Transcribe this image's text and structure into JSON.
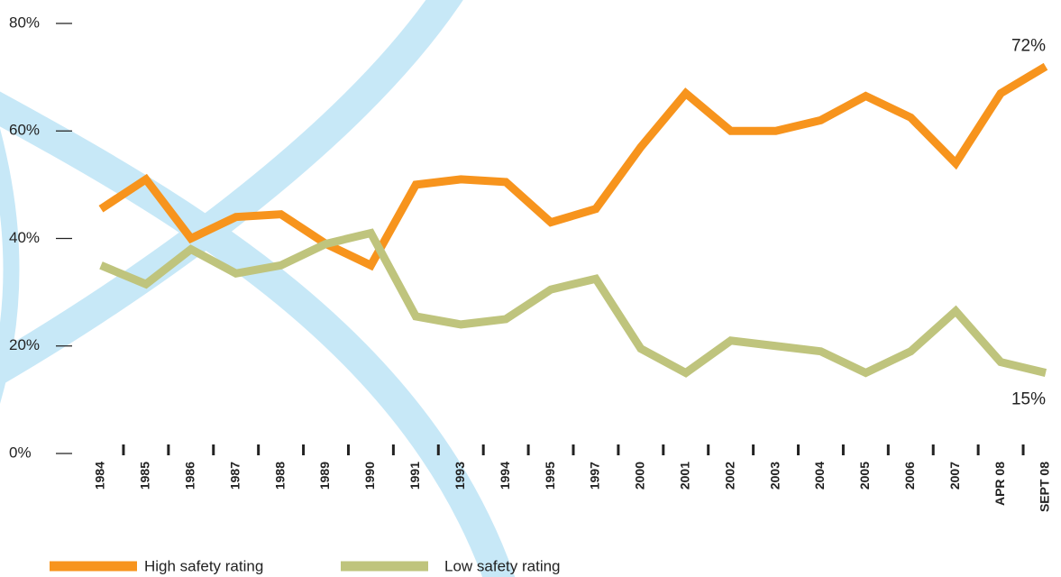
{
  "chart_data": {
    "type": "line",
    "categories": [
      "1984",
      "1985",
      "1986",
      "1987",
      "1988",
      "1989",
      "1990",
      "1991",
      "1993",
      "1994",
      "1995",
      "1997",
      "2000",
      "2001",
      "2002",
      "2003",
      "2004",
      "2005",
      "2006",
      "2007",
      "APR 08",
      "SEPT 08"
    ],
    "series": [
      {
        "name": "High safety rating",
        "color": "#f7941d",
        "values": [
          45.5,
          51,
          40,
          44,
          44.5,
          39,
          35,
          50,
          51,
          50.5,
          43,
          45.5,
          57,
          67,
          60,
          60,
          62,
          66.5,
          62.5,
          54,
          67,
          72
        ],
        "value_labels": [
          null,
          null,
          null,
          null,
          null,
          null,
          null,
          null,
          null,
          null,
          null,
          null,
          null,
          null,
          null,
          null,
          null,
          null,
          null,
          null,
          null,
          "72%"
        ]
      },
      {
        "name": "Low safety rating",
        "color": "#bfc47d",
        "values": [
          35,
          31.5,
          38,
          33.5,
          35,
          39,
          41,
          25.5,
          24,
          25,
          30.5,
          32.5,
          19.5,
          15,
          21,
          20,
          19,
          15,
          19,
          26.5,
          17,
          15
        ],
        "value_labels": [
          null,
          null,
          null,
          null,
          null,
          null,
          null,
          null,
          null,
          null,
          null,
          null,
          null,
          null,
          null,
          null,
          null,
          null,
          null,
          null,
          null,
          "15%"
        ]
      }
    ],
    "ylim": [
      0,
      80
    ],
    "yticks": [
      {
        "value": 0,
        "label": "0%"
      },
      {
        "value": 20,
        "label": "20%"
      },
      {
        "value": 40,
        "label": "40%"
      },
      {
        "value": 60,
        "label": "60%"
      },
      {
        "value": 80,
        "label": "80%"
      }
    ]
  }
}
